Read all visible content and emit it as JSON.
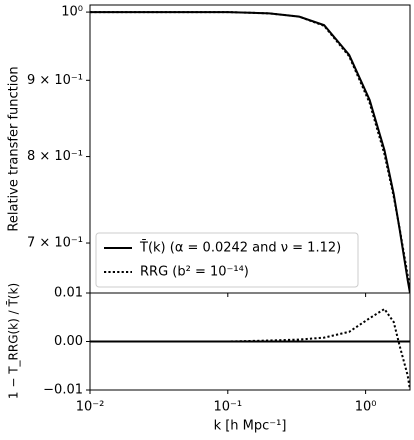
{
  "chart_data": [
    {
      "type": "line",
      "ylabel": "Relative transfer function",
      "xscale": "log",
      "yscale": "log",
      "xlim": [
        0.01,
        2.1
      ],
      "ylim": [
        0.648,
        1.011
      ],
      "xticks": [
        0.01,
        0.1,
        1
      ],
      "yticks": [
        {
          "value": 1,
          "label": "10⁰"
        },
        {
          "value": 0.9,
          "label": "9 × 10⁻¹"
        },
        {
          "value": 0.8,
          "label": "8 × 10⁻¹"
        },
        {
          "value": 0.7,
          "label": "7 × 10⁻¹"
        }
      ],
      "legend": "lower left",
      "x": [
        0.01,
        0.03,
        0.1,
        0.2,
        0.33,
        0.5,
        0.76,
        1.07,
        1.37,
        1.6,
        1.77,
        2.02,
        2.1
      ],
      "series": [
        {
          "name": "T̄(k) (α = 0.0242 and ν = 1.12)",
          "color": "#000000",
          "style": "solid",
          "values": [
            1.0,
            1.0,
            1.0,
            0.998,
            0.993,
            0.98,
            0.936,
            0.873,
            0.808,
            0.755,
            0.714,
            0.661,
            0.648
          ]
        },
        {
          "name": "RRG (b² = 10⁻¹⁴)",
          "color": "#000000",
          "style": "dotted",
          "values": [
            1.0,
            1.0,
            1.0,
            0.998,
            0.993,
            0.979,
            0.934,
            0.869,
            0.803,
            0.752,
            0.715,
            0.666,
            0.654
          ]
        }
      ]
    },
    {
      "type": "line",
      "ylabel": "1 − T_RRG(k) / T̄(k)",
      "xlabel": "k [h Mpc⁻¹]",
      "xscale": "log",
      "xlim": [
        0.01,
        2.1
      ],
      "ylim": [
        -0.01,
        0.01
      ],
      "xticks": [
        {
          "value": 0.01,
          "label": "10⁻²"
        },
        {
          "value": 0.1,
          "label": "10⁻¹"
        },
        {
          "value": 1,
          "label": "10⁰"
        }
      ],
      "yticks": [
        {
          "value": -0.01,
          "label": "−0.01"
        },
        {
          "value": 0,
          "label": "0.00"
        },
        0.01
      ],
      "reference_line": 0,
      "reference_color": "#000000",
      "x": [
        0.01,
        0.03,
        0.1,
        0.2,
        0.33,
        0.5,
        0.76,
        1.07,
        1.37,
        1.6,
        1.77,
        2.02,
        2.1
      ],
      "series": [
        {
          "color": "#000000",
          "style": "dotted",
          "values": [
            0,
            0,
            0,
            0.0002,
            0.0004,
            0.0008,
            0.002,
            0.0048,
            0.0067,
            0.004,
            -0.001,
            -0.007,
            -0.01
          ]
        }
      ]
    }
  ]
}
